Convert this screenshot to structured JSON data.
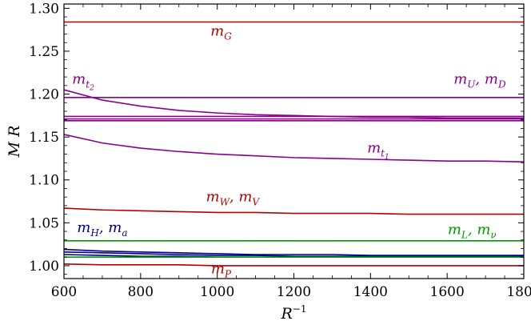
{
  "chart_data": {
    "type": "line",
    "xlabel": "R",
    "xlabel_sup": "−1",
    "ylabel": "M R",
    "xlim": [
      600,
      1800
    ],
    "ylim": [
      0.985,
      1.305
    ],
    "x_ticks": [
      600,
      800,
      1000,
      1200,
      1400,
      1600,
      1800
    ],
    "x_tick_labels": [
      "600",
      "800",
      "1000",
      "1200",
      "1400",
      "1600",
      "1800"
    ],
    "y_ticks": [
      1.0,
      1.05,
      1.1,
      1.15,
      1.2,
      1.25,
      1.3
    ],
    "y_tick_labels": [
      "1.00",
      "1.05",
      "1.10",
      "1.15",
      "1.20",
      "1.25",
      "1.30"
    ],
    "grid": false,
    "x": [
      600,
      700,
      800,
      900,
      1000,
      1100,
      1200,
      1300,
      1400,
      1500,
      1600,
      1700,
      1800
    ],
    "series": [
      {
        "color": "#b30000",
        "values": [
          1.284,
          1.284,
          1.284,
          1.284,
          1.284,
          1.284,
          1.284,
          1.284,
          1.284,
          1.284,
          1.284,
          1.284,
          1.284
        ]
      },
      {
        "color": "#8b008b",
        "values": [
          1.196,
          1.196,
          1.196,
          1.196,
          1.196,
          1.196,
          1.196,
          1.196,
          1.196,
          1.196,
          1.196,
          1.196,
          1.196
        ]
      },
      {
        "color": "#8b008b",
        "values": [
          1.205,
          1.193,
          1.186,
          1.181,
          1.178,
          1.176,
          1.175,
          1.174,
          1.173,
          1.173,
          1.172,
          1.172,
          1.172
        ]
      },
      {
        "color": "#8b008b",
        "values": [
          1.174,
          1.174,
          1.174,
          1.174,
          1.174,
          1.174,
          1.174,
          1.174,
          1.174,
          1.174,
          1.174,
          1.174,
          1.174
        ]
      },
      {
        "color": "#8b008b",
        "values": [
          1.171,
          1.171,
          1.171,
          1.171,
          1.171,
          1.171,
          1.171,
          1.171,
          1.171,
          1.171,
          1.171,
          1.171,
          1.171
        ]
      },
      {
        "color": "#8b008b",
        "values": [
          1.169,
          1.169,
          1.169,
          1.169,
          1.169,
          1.169,
          1.169,
          1.169,
          1.169,
          1.169,
          1.169,
          1.169,
          1.169
        ]
      },
      {
        "color": "#8b008b",
        "values": [
          1.153,
          1.143,
          1.137,
          1.133,
          1.13,
          1.128,
          1.126,
          1.125,
          1.124,
          1.123,
          1.122,
          1.122,
          1.121
        ]
      },
      {
        "color": "#b30000",
        "values": [
          1.067,
          1.065,
          1.064,
          1.063,
          1.062,
          1.062,
          1.061,
          1.061,
          1.061,
          1.06,
          1.06,
          1.06,
          1.06
        ]
      },
      {
        "color": "#009900",
        "values": [
          1.029,
          1.029,
          1.029,
          1.029,
          1.029,
          1.029,
          1.029,
          1.029,
          1.029,
          1.029,
          1.029,
          1.029,
          1.029
        ]
      },
      {
        "color": "#00008b",
        "values": [
          1.019,
          1.017,
          1.016,
          1.015,
          1.014,
          1.013,
          1.013,
          1.013,
          1.012,
          1.012,
          1.012,
          1.012,
          1.012
        ]
      },
      {
        "color": "#00008b",
        "values": [
          1.016,
          1.015,
          1.014,
          1.013,
          1.012,
          1.012,
          1.011,
          1.011,
          1.011,
          1.011,
          1.011,
          1.011,
          1.011
        ]
      },
      {
        "color": "#00008b",
        "values": [
          1.013,
          1.012,
          1.011,
          1.011,
          1.01,
          1.01,
          1.01,
          1.01,
          1.01,
          1.01,
          1.01,
          1.01,
          1.01
        ]
      },
      {
        "color": "#009900",
        "values": [
          1.01,
          1.01,
          1.01,
          1.01,
          1.01,
          1.01,
          1.01,
          1.01,
          1.01,
          1.01,
          1.01,
          1.01,
          1.01
        ]
      },
      {
        "color": "#b30000",
        "values": [
          1.002,
          1.001,
          1.001,
          1.001,
          1.0,
          1.0,
          1.0,
          1.0,
          1.0,
          1.0,
          1.0,
          1.0,
          1.0
        ]
      }
    ],
    "annotations": [
      {
        "id": "mG",
        "base": "m",
        "sub": "G",
        "tail": "",
        "color": "#b30000",
        "x": 1010,
        "y": 1.268
      },
      {
        "id": "mt2",
        "base": "m",
        "sub": "t",
        "subsub": "2",
        "tail": "",
        "color": "#8b008b",
        "x": 650,
        "y": 1.212
      },
      {
        "id": "mUD",
        "base": "m",
        "sub": "U",
        "tail": ", m",
        "sub2": "D",
        "color": "#8b008b",
        "x": 1685,
        "y": 1.212
      },
      {
        "id": "mt1",
        "base": "m",
        "sub": "t",
        "subsub": "1",
        "tail": "",
        "color": "#8b008b",
        "x": 1420,
        "y": 1.132
      },
      {
        "id": "mWV",
        "base": "m",
        "sub": "W",
        "tail": ", m",
        "sub2": "V",
        "color": "#b30000",
        "x": 1040,
        "y": 1.075
      },
      {
        "id": "mHa",
        "base": "m",
        "sub": "H",
        "tail": ", m",
        "sub2": "a",
        "color": "#00008b",
        "x": 700,
        "y": 1.039
      },
      {
        "id": "mLnu",
        "base": "m",
        "sub": "L",
        "tail": ", m",
        "sub2": "ν",
        "color": "#009900",
        "x": 1665,
        "y": 1.037
      },
      {
        "id": "mP",
        "base": "m",
        "sub": "P",
        "tail": "",
        "color": "#b30000",
        "x": 1010,
        "y": 0.991
      }
    ]
  }
}
